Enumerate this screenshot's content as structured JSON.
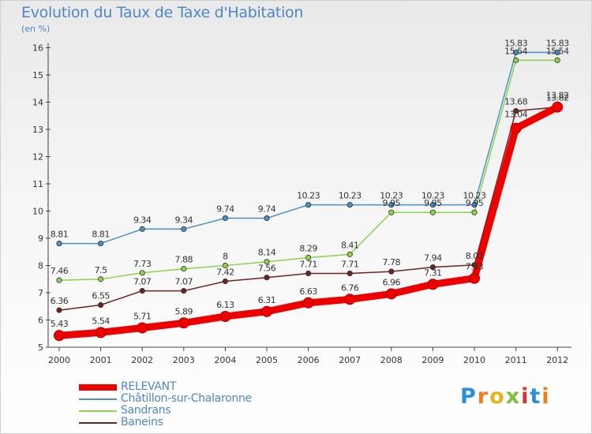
{
  "chart_data": {
    "type": "line",
    "title": "Evolution du Taux de Taxe d'Habitation",
    "ylabel": "(en %)",
    "xlabel": "",
    "x": [
      "2000",
      "2001",
      "2002",
      "2003",
      "2004",
      "2005",
      "2006",
      "2007",
      "2008",
      "2009",
      "2010",
      "2011",
      "2012"
    ],
    "ylim": [
      5,
      16
    ],
    "yticks": [
      "5",
      "6",
      "7",
      "8",
      "9",
      "10",
      "11",
      "12",
      "13",
      "14",
      "15",
      "16"
    ],
    "grid": false,
    "legend_position": "bottom-left",
    "series": [
      {
        "name": "RELEVANT",
        "color": "#ee0000",
        "values": [
          5.43,
          5.54,
          5.71,
          5.89,
          6.13,
          6.31,
          6.63,
          6.76,
          6.96,
          7.31,
          7.53,
          13.04,
          13.82
        ],
        "labels": [
          "5.43",
          "5.54",
          "5.71",
          "5.89",
          "6.13",
          "6.31",
          "6.63",
          "6.76",
          "6.96",
          "7.31",
          "7.53",
          "13.04",
          "13.82"
        ],
        "label_pos": [
          "above",
          "above",
          "above",
          "above",
          "above",
          "above",
          "above",
          "above",
          "above",
          "above",
          "above",
          "below",
          "above"
        ]
      },
      {
        "name": "Châtillon-sur-Chalaronne",
        "color": "#4a90c8",
        "values": [
          8.81,
          8.81,
          9.34,
          9.34,
          9.74,
          9.74,
          10.23,
          10.23,
          10.23,
          10.23,
          10.23,
          15.83,
          15.83
        ],
        "labels": [
          "8.81",
          "8.81",
          "9.34",
          "9.34",
          "9.74",
          "9.74",
          "10.23",
          "10.23",
          "10.23",
          "10.23",
          "10.23",
          "15.83",
          "15.83"
        ],
        "label_pos": [
          "above",
          "above",
          "above",
          "above",
          "above",
          "above",
          "above",
          "above",
          "above",
          "above",
          "above",
          "above",
          "above"
        ]
      },
      {
        "name": "Sandrans",
        "color": "#8ed24a",
        "values": [
          7.46,
          7.5,
          7.73,
          7.88,
          8,
          8.14,
          8.29,
          8.41,
          9.95,
          9.95,
          9.95,
          15.54,
          15.54
        ],
        "labels": [
          "7.46",
          "7.5",
          "7.73",
          "7.88",
          "8",
          "8.14",
          "8.29",
          "8.41",
          "9.95",
          "9.95",
          "9.95",
          "15.54",
          "15.54"
        ],
        "label_pos": [
          "above",
          "above",
          "above",
          "above",
          "above",
          "above",
          "above",
          "above",
          "above",
          "above",
          "above",
          "above",
          "above"
        ]
      },
      {
        "name": "Baneins",
        "color": "#6e2222",
        "values": [
          6.36,
          6.55,
          7.07,
          7.07,
          7.42,
          7.56,
          7.71,
          7.71,
          7.78,
          7.94,
          8.02,
          13.68,
          13.82
        ],
        "labels": [
          "6.36",
          "6.55",
          "7.07",
          "7.07",
          "7.42",
          "7.56",
          "7.71",
          "7.71",
          "7.78",
          "7.94",
          "8.02",
          "13.68",
          "13.82"
        ],
        "label_pos": [
          "above",
          "above",
          "above",
          "above",
          "above",
          "above",
          "above",
          "above",
          "above",
          "above",
          "above",
          "above",
          "above"
        ]
      }
    ]
  },
  "logo": {
    "letters": [
      "P",
      "r",
      "o",
      "x",
      "i",
      "t",
      "i"
    ],
    "colors": [
      "#2a8fd6",
      "#f07c1a",
      "#e8b21c",
      "#7bbf3a",
      "#d9342b",
      "#2a8fd6",
      "#f07c1a"
    ]
  }
}
